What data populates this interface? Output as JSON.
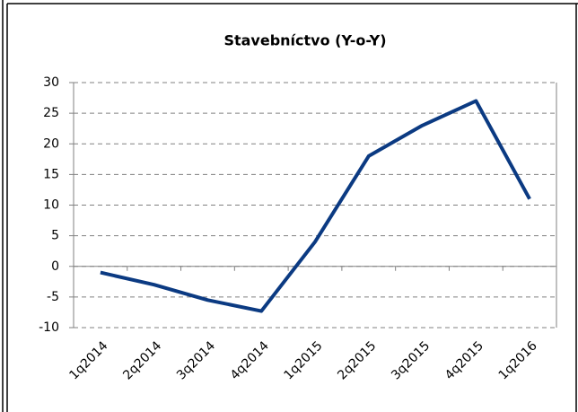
{
  "chart_data": {
    "type": "line",
    "title": "Stavebníctvo (Y-o-Y)",
    "categories": [
      "1q2014",
      "2q2014",
      "3q2014",
      "4q2014",
      "1q2015",
      "2q2015",
      "3q2015",
      "4q2015",
      "1q2016"
    ],
    "series": [
      {
        "name": null,
        "color": "#0b3a82",
        "values": [
          -1,
          -3,
          -5.5,
          -7.3,
          4,
          18,
          23,
          27,
          11
        ]
      }
    ],
    "ylim": [
      -10,
      30
    ],
    "yticks": [
      -10,
      -5,
      0,
      5,
      10,
      15,
      20,
      25,
      30
    ],
    "grid": true
  }
}
